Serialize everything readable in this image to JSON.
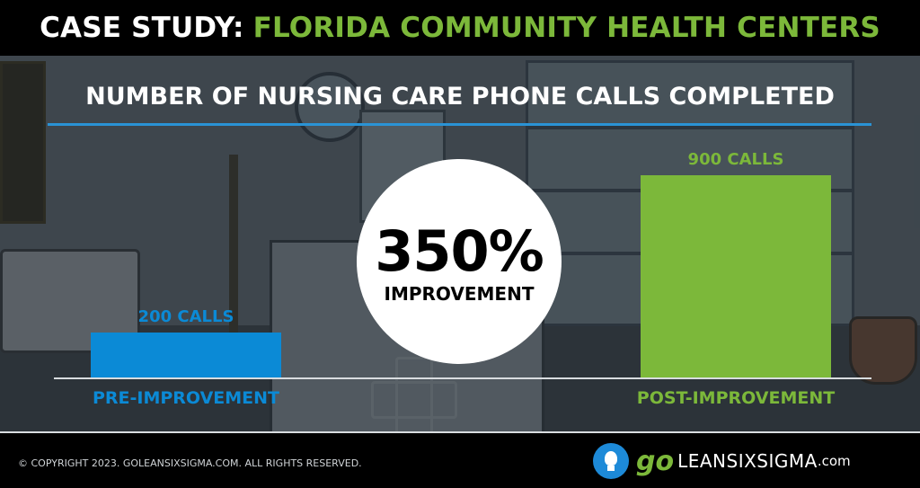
{
  "header": {
    "prefix": "CASE STUDY:",
    "title": "FLORIDA COMMUNITY HEALTH CENTERS"
  },
  "colors": {
    "pre": "#0b8ad6",
    "post": "#7cb83a",
    "accent_rule": "#2a93d5"
  },
  "callout": {
    "percent": "350%",
    "label": "IMPROVEMENT"
  },
  "chart_data": {
    "type": "bar",
    "title": "NUMBER OF NURSING CARE PHONE CALLS COMPLETED",
    "categories": [
      "PRE-IMPROVEMENT",
      "POST-IMPROVEMENT"
    ],
    "values": [
      200,
      900
    ],
    "data_labels": [
      "200 CALLS",
      "900 CALLS"
    ],
    "ylim": [
      0,
      900
    ],
    "grid": false
  },
  "footer": {
    "copyright": "© COPYRIGHT 2023. GOLEANSIXSIGMA.COM. ALL RIGHTS RESERVED.",
    "logo_go": "go",
    "logo_name": "LEANSIXSIGMA",
    "logo_com": ".com"
  }
}
